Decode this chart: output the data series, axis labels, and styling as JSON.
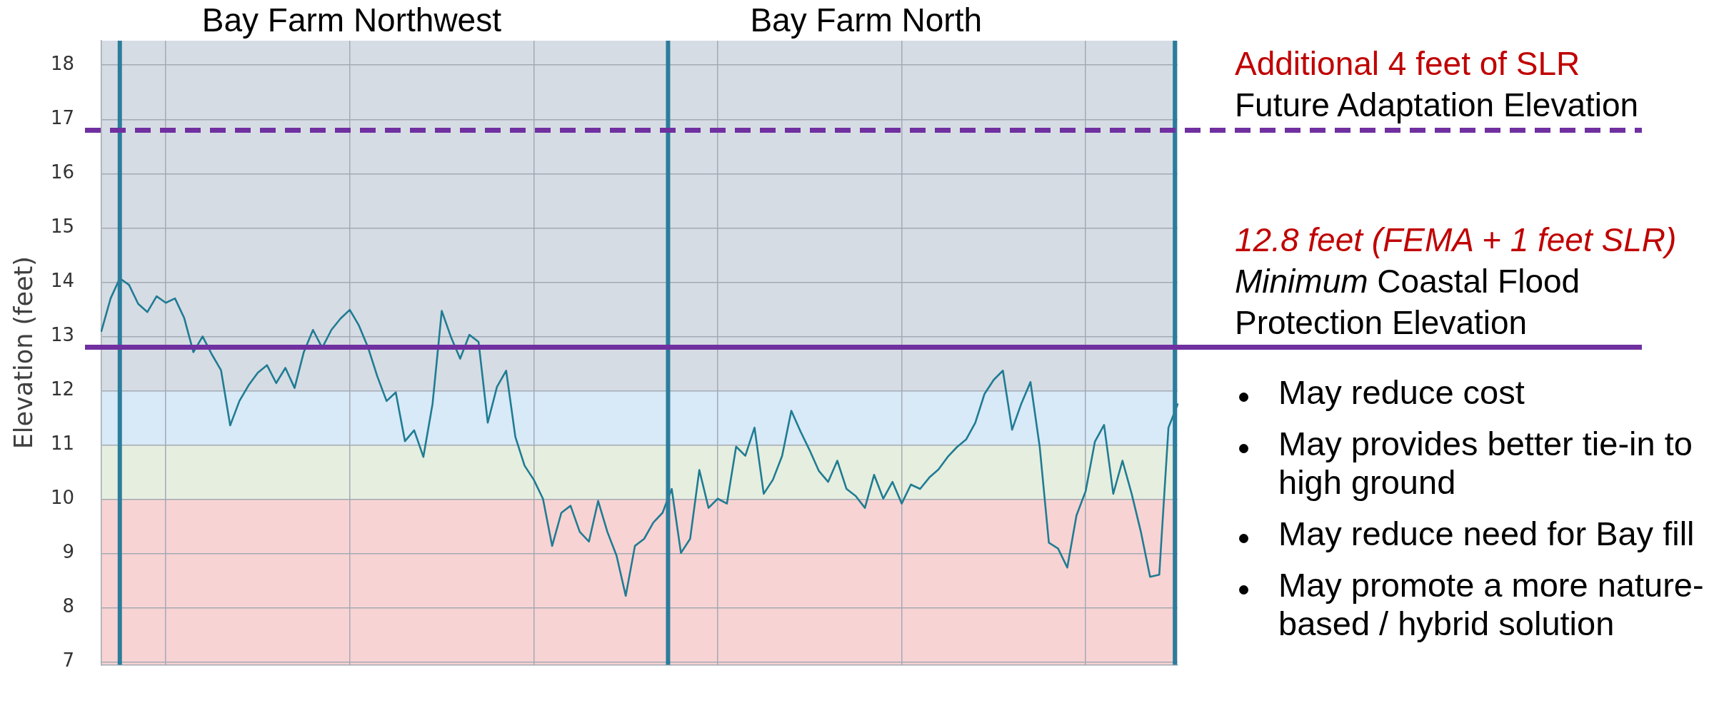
{
  "chart_data": {
    "type": "line",
    "ylabel": "Elevation (feet)",
    "categories": [
      null,
      null,
      null,
      null,
      null,
      null,
      null,
      null,
      null,
      null,
      null,
      null,
      null,
      null,
      null,
      null,
      null,
      null,
      null,
      null,
      null,
      null,
      null,
      null,
      null,
      null,
      null,
      null,
      null,
      null,
      null,
      null,
      null,
      null,
      null,
      null,
      null,
      null,
      null,
      null,
      null,
      null,
      null,
      null,
      null,
      null,
      null,
      null,
      null,
      null,
      null,
      null,
      null,
      null,
      null,
      null,
      null,
      null,
      null,
      null,
      null,
      null,
      null,
      null,
      null,
      null,
      null,
      null,
      null,
      null,
      null,
      null,
      null,
      null,
      null,
      null,
      null,
      null,
      null,
      null,
      null,
      null,
      null,
      null,
      null,
      null,
      null,
      null,
      null,
      null,
      null,
      null,
      null,
      null,
      null,
      null,
      null,
      null,
      null,
      null,
      null,
      null,
      null,
      null,
      null,
      null,
      null,
      null,
      null,
      null,
      null,
      null,
      null,
      null,
      null,
      null,
      null,
      null
    ],
    "series": [
      {
        "color": "#1f7c93",
        "values": [
          13.1,
          13.7,
          14.07,
          13.95,
          13.6,
          13.45,
          13.74,
          13.62,
          13.7,
          13.34,
          12.71,
          13.0,
          12.67,
          12.38,
          11.36,
          11.81,
          12.1,
          12.33,
          12.47,
          12.14,
          12.42,
          12.05,
          12.71,
          13.12,
          12.79,
          13.12,
          13.33,
          13.49,
          13.2,
          12.79,
          12.26,
          11.81,
          11.97,
          11.07,
          11.27,
          10.78,
          11.76,
          13.47,
          12.99,
          12.59,
          13.03,
          12.9,
          11.41,
          12.07,
          12.37,
          11.15,
          10.62,
          10.36,
          10.01,
          9.14,
          9.75,
          9.88,
          9.4,
          9.22,
          9.97,
          9.4,
          8.96,
          8.22,
          9.14,
          9.27,
          9.57,
          9.75,
          10.19,
          9.01,
          9.27,
          10.54,
          9.84,
          10.01,
          9.92,
          10.97,
          10.8,
          11.32,
          10.1,
          10.36,
          10.8,
          11.63,
          11.25,
          10.9,
          10.52,
          10.32,
          10.71,
          10.19,
          10.06,
          9.84,
          10.45,
          10.01,
          10.32,
          9.92,
          10.27,
          10.19,
          10.4,
          10.55,
          10.78,
          10.96,
          11.1,
          11.41,
          11.94,
          12.2,
          12.37,
          11.28,
          11.76,
          12.16,
          10.97,
          9.2,
          9.09,
          8.74,
          9.7,
          10.15,
          11.06,
          11.37,
          10.1,
          10.71,
          10.1,
          9.4,
          8.57,
          8.61,
          11.32,
          11.75
        ]
      }
    ],
    "ylim": [
      6.95,
      18.45
    ],
    "yticks": [
      7,
      8,
      9,
      10,
      11,
      12,
      13,
      14,
      15,
      16,
      17,
      18
    ],
    "tick_labels": "y",
    "grid": true,
    "marker": "none",
    "bands": [
      {
        "axis": "y",
        "from": 6.95,
        "to": 10,
        "color": "#f8d3d3"
      },
      {
        "axis": "y",
        "from": 10,
        "to": 11,
        "color": "#e6eedf"
      },
      {
        "axis": "y",
        "from": 11,
        "to": 12,
        "color": "#d8e9f7"
      },
      {
        "axis": "y",
        "from": 12,
        "to": 18.45,
        "color": "#d6dce4"
      }
    ],
    "ref_lines": [
      {
        "axis": "y",
        "value": 16.8,
        "color": "#7030a0",
        "line_style": "dashed",
        "label": "Future Adaptation Elevation"
      },
      {
        "axis": "y",
        "value": 12.8,
        "color": "#7030a0",
        "line_style": "solid",
        "label": "Minimum Coastal Flood Protection Elevation"
      }
    ],
    "annotations": [
      "Bay Farm Northwest",
      "Bay Farm North",
      {
        "text": "Additional 4 feet of SLR",
        "y": 16.8
      },
      {
        "text": "12.8 feet (FEMA + 1 feet SLR)",
        "y": 12.8
      },
      "May reduce cost",
      "May provides better tie-in to high ground",
      "May reduce need for Bay fill",
      "May promote a more nature-based / hybrid solution"
    ]
  }
}
